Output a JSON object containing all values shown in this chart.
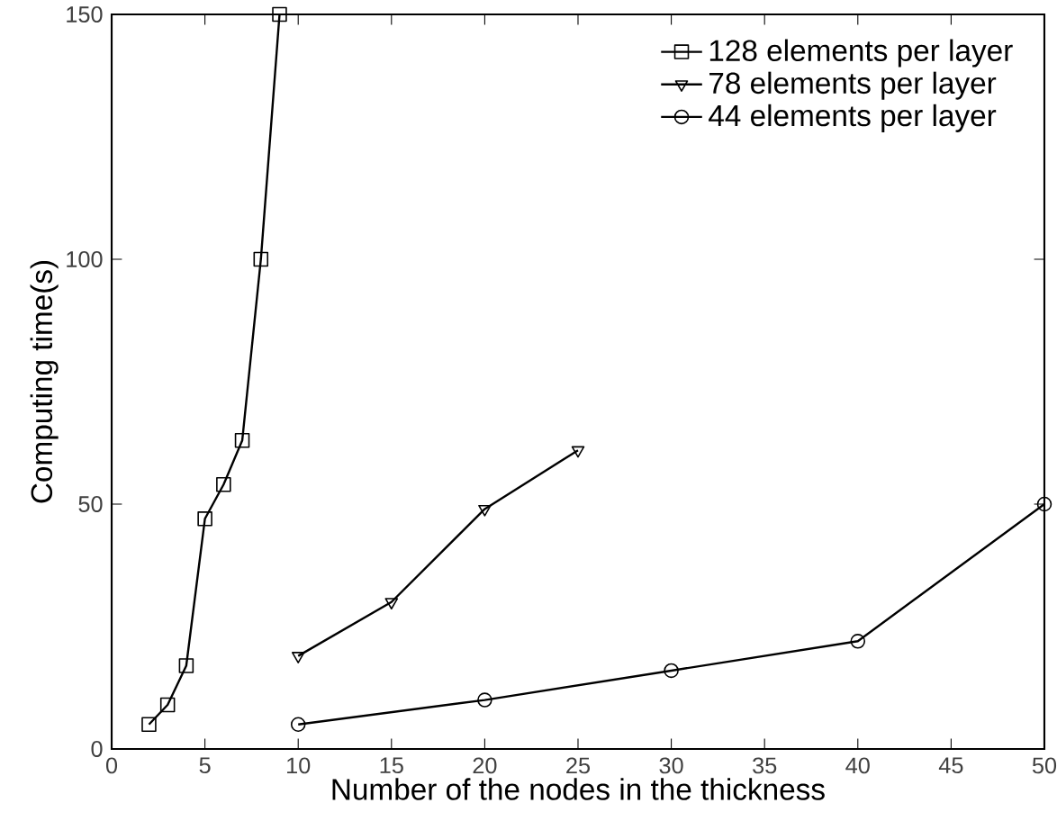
{
  "chart_data": {
    "type": "line",
    "xlabel": "Number of the nodes in the thickness",
    "ylabel": "Computing time(s)",
    "xlim": [
      0,
      50
    ],
    "ylim": [
      0,
      150
    ],
    "xticks": [
      0,
      5,
      10,
      15,
      20,
      25,
      30,
      35,
      40,
      45,
      50
    ],
    "yticks": [
      0,
      50,
      100,
      150
    ],
    "legend": "top right",
    "grid": false,
    "line_style": "solid",
    "series": [
      {
        "name": "128 elements per layer",
        "color": "#000000",
        "marker": "square",
        "x": [
          2,
          3,
          4,
          5,
          6,
          7,
          8,
          9
        ],
        "values": [
          5,
          9,
          17,
          47,
          54,
          63,
          100,
          150
        ]
      },
      {
        "name": "78 elements per layer",
        "color": "#000000",
        "marker": "triangle",
        "x": [
          10,
          15,
          20,
          25
        ],
        "values": [
          19,
          30,
          49,
          61
        ]
      },
      {
        "name": "44 elements per layer",
        "color": "#000000",
        "marker": "circle",
        "x": [
          10,
          20,
          30,
          40,
          50
        ],
        "values": [
          5,
          10,
          16,
          22,
          50
        ]
      }
    ]
  }
}
